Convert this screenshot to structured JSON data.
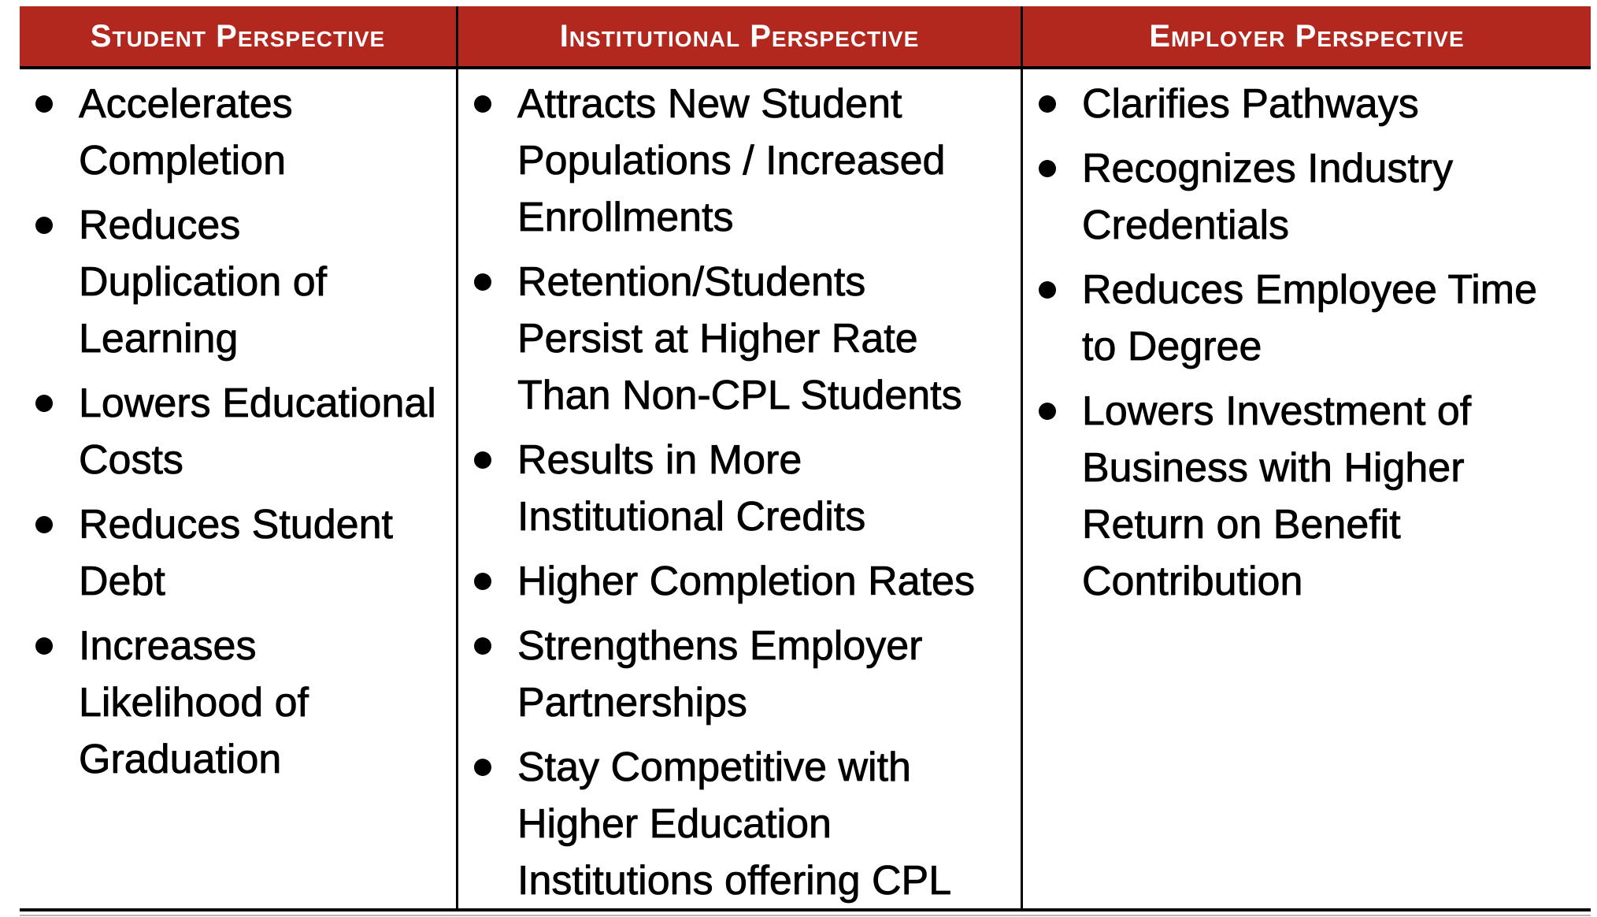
{
  "theme": {
    "header_bg": "#B2281E",
    "header_text": "#FFFFFF",
    "body_text": "#000000",
    "border": "#000000"
  },
  "columns": [
    {
      "header": "Student Perspective",
      "items": [
        "Accelerates Completion",
        "Reduces Duplication of Learning",
        "Lowers Educational Costs",
        "Reduces Student Debt",
        "Increases Likelihood of Graduation"
      ]
    },
    {
      "header": "Institutional Perspective",
      "items": [
        "Attracts New Student Populations / Increased Enrollments",
        "Retention/Students Persist at Higher Rate Than Non-CPL Students",
        "Results in More Institutional Credits",
        "Higher Completion Rates",
        "Strengthens Employer Partnerships",
        "Stay Competitive with Higher Education Institutions offering CPL"
      ]
    },
    {
      "header": "Employer Perspective",
      "items": [
        "Clarifies Pathways",
        "Recognizes Industry Credentials",
        "Reduces Employee Time to Degree",
        "Lowers Investment of Business with Higher Return on Benefit Contribution"
      ]
    }
  ]
}
